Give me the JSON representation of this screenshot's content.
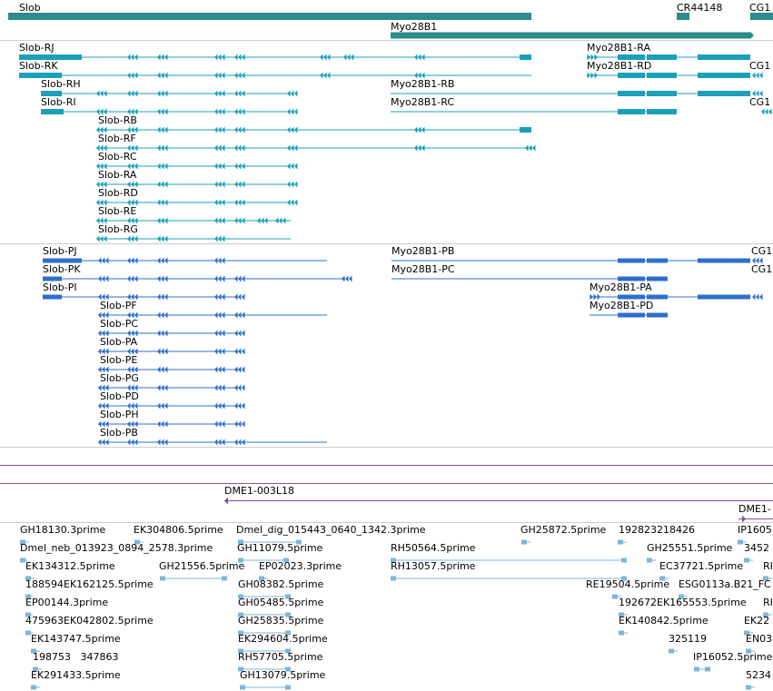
{
  "colors": {
    "gene": "#2e8b8b",
    "rna": "#1aa0b8",
    "protein": "#2f6fc9",
    "clone": "#7a55a0",
    "est": "#7fb6da",
    "divider": "#cccccc"
  },
  "genes": [
    {
      "id": "g-slob",
      "label": "Slob"
    },
    {
      "id": "g-cr44148",
      "label": "CR44148"
    },
    {
      "id": "g-cg1a",
      "label": "CG1"
    },
    {
      "id": "g-myo28b1",
      "label": "Myo28B1"
    }
  ],
  "transcripts": [
    {
      "id": "slob-rj",
      "label": "Slob-RJ"
    },
    {
      "id": "slob-rk",
      "label": "Slob-RK"
    },
    {
      "id": "slob-rh",
      "label": "Slob-RH"
    },
    {
      "id": "slob-ri",
      "label": "Slob-RI"
    },
    {
      "id": "slob-rb",
      "label": "Slob-RB"
    },
    {
      "id": "slob-rf",
      "label": "Slob-RF"
    },
    {
      "id": "slob-rc",
      "label": "Slob-RC"
    },
    {
      "id": "slob-ra",
      "label": "Slob-RA"
    },
    {
      "id": "slob-rd",
      "label": "Slob-RD"
    },
    {
      "id": "slob-re",
      "label": "Slob-RE"
    },
    {
      "id": "slob-rg",
      "label": "Slob-RG"
    },
    {
      "id": "myo-ra",
      "label": "Myo28B1-RA"
    },
    {
      "id": "myo-rd",
      "label": "Myo28B1-RD"
    },
    {
      "id": "myo-rb",
      "label": "Myo28B1-RB"
    },
    {
      "id": "myo-rc",
      "label": "Myo28B1-RC"
    },
    {
      "id": "cg1-r1",
      "label": "CG1"
    },
    {
      "id": "cg1-r2",
      "label": "CG1"
    }
  ],
  "proteins": [
    {
      "id": "slob-pj",
      "label": "Slob-PJ"
    },
    {
      "id": "slob-pk",
      "label": "Slob-PK"
    },
    {
      "id": "slob-pi",
      "label": "Slob-PI"
    },
    {
      "id": "slob-pf",
      "label": "Slob-PF"
    },
    {
      "id": "slob-pc",
      "label": "Slob-PC"
    },
    {
      "id": "slob-pa",
      "label": "Slob-PA"
    },
    {
      "id": "slob-pe",
      "label": "Slob-PE"
    },
    {
      "id": "slob-pg",
      "label": "Slob-PG"
    },
    {
      "id": "slob-pd",
      "label": "Slob-PD"
    },
    {
      "id": "slob-ph",
      "label": "Slob-PH"
    },
    {
      "id": "slob-pb",
      "label": "Slob-PB"
    },
    {
      "id": "myo-pb",
      "label": "Myo28B1-PB"
    },
    {
      "id": "myo-pc",
      "label": "Myo28B1-PC"
    },
    {
      "id": "myo-pa",
      "label": "Myo28B1-PA"
    },
    {
      "id": "myo-pd",
      "label": "Myo28B1-PD"
    },
    {
      "id": "cg1-p1",
      "label": "CG1"
    },
    {
      "id": "cg1-p2",
      "label": "CG1"
    }
  ],
  "clones": [
    {
      "id": "clone-dme1-003l18",
      "label": "DME1-003L18"
    },
    {
      "id": "clone-dme1-b",
      "label": "DME1-"
    }
  ],
  "ests": [
    {
      "id": "e1",
      "label": "GH18130.3prime"
    },
    {
      "id": "e2",
      "label": "EK304806.5prime"
    },
    {
      "id": "e3",
      "label": "Dmel_dig_015443_0640_1342.3prime"
    },
    {
      "id": "e4",
      "label": "GH25872.5prime"
    },
    {
      "id": "e5",
      "label": "192823218426"
    },
    {
      "id": "e6",
      "label": "IP1605"
    },
    {
      "id": "e7",
      "label": "Dmel_neb_013923_0894_2578.3prime"
    },
    {
      "id": "e8",
      "label": "GH11079.5prime"
    },
    {
      "id": "e9",
      "label": "RH50564.5prime"
    },
    {
      "id": "e10",
      "label": "GH25551.5prime"
    },
    {
      "id": "e11",
      "label": "3452"
    },
    {
      "id": "e12",
      "label": "EK134312.5prime"
    },
    {
      "id": "e13",
      "label": "GH21556.5prime"
    },
    {
      "id": "e14",
      "label": "EP02023.3prime"
    },
    {
      "id": "e15",
      "label": "RH13057.5prime"
    },
    {
      "id": "e16",
      "label": "EC37721.5prime"
    },
    {
      "id": "e17",
      "label": "RI"
    },
    {
      "id": "e18",
      "label": "188594EK162125.5prime"
    },
    {
      "id": "e19",
      "label": "GH08382.5prime"
    },
    {
      "id": "e20",
      "label": "RE19504.5prime"
    },
    {
      "id": "e21",
      "label": "ESG0113a.B21_FC"
    },
    {
      "id": "e22",
      "label": "EP00144.3prime"
    },
    {
      "id": "e23",
      "label": "GH05485.5prime"
    },
    {
      "id": "e24",
      "label": "192672EK165553.5prime"
    },
    {
      "id": "e25",
      "label": "RI"
    },
    {
      "id": "e26",
      "label": "475963EK042802.5prime"
    },
    {
      "id": "e27",
      "label": "GH25835.5prime"
    },
    {
      "id": "e28",
      "label": "EK140842.5prime"
    },
    {
      "id": "e29",
      "label": "EK22"
    },
    {
      "id": "e30",
      "label": "EK143747.5prime"
    },
    {
      "id": "e31",
      "label": "EK294604.5prime"
    },
    {
      "id": "e32",
      "label": "325119"
    },
    {
      "id": "e33",
      "label": "EN03"
    },
    {
      "id": "e34",
      "label": "198753   347863"
    },
    {
      "id": "e35",
      "label": "RH57705.5prime"
    },
    {
      "id": "e36",
      "label": "IP16052.5prime"
    },
    {
      "id": "e37",
      "label": "EK291433.5prime"
    },
    {
      "id": "e38",
      "label": "GH13079.5prime"
    },
    {
      "id": "e39",
      "label": "5234"
    }
  ]
}
